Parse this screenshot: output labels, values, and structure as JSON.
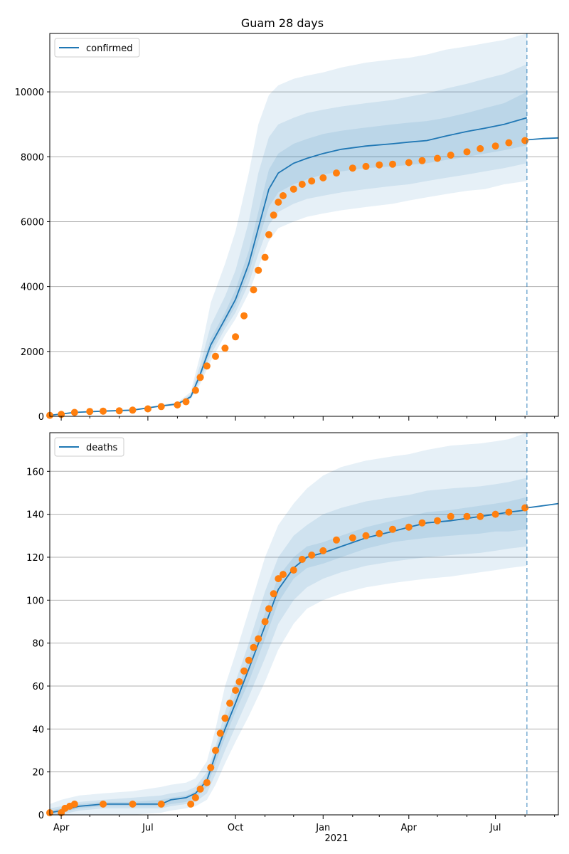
{
  "figure": {
    "title": "Guam 28 days",
    "year_label": "2021",
    "x_tick_labels": [
      "Apr",
      "Jul",
      "Oct",
      "Jan",
      "Apr",
      "Jul"
    ]
  },
  "colors": {
    "model_line": "#1f77b4",
    "observed": "#ff7f0e",
    "band": "#1f77b4",
    "grid": "#b0b0b0",
    "vline": "#1f77b4"
  },
  "chart_data": [
    {
      "type": "line",
      "name": "confirmed-panel",
      "legend": "confirmed",
      "legend_position": "top-left",
      "xlim": [
        "2020-03-20",
        "2021-09-05"
      ],
      "ylim": [
        0,
        11800
      ],
      "yticks": [
        0,
        2000,
        4000,
        6000,
        8000,
        10000
      ],
      "grid": "horizontal",
      "forecast_start": "2021-08-03",
      "series": [
        {
          "name": "confirmed",
          "x": [
            "2020-03-20",
            "2020-04-15",
            "2020-05-15",
            "2020-06-15",
            "2020-07-15",
            "2020-08-01",
            "2020-08-15",
            "2020-08-25",
            "2020-09-05",
            "2020-09-20",
            "2020-10-01",
            "2020-10-15",
            "2020-10-25",
            "2020-11-05",
            "2020-11-15",
            "2020-12-01",
            "2020-12-15",
            "2021-01-01",
            "2021-01-20",
            "2021-02-15",
            "2021-03-15",
            "2021-04-01",
            "2021-04-20",
            "2021-05-10",
            "2021-06-01",
            "2021-06-20",
            "2021-07-10",
            "2021-08-03"
          ],
          "y": [
            30,
            120,
            160,
            190,
            320,
            380,
            600,
            1300,
            2200,
            3000,
            3600,
            4700,
            5800,
            7000,
            7500,
            7800,
            7950,
            8100,
            8230,
            8330,
            8400,
            8450,
            8500,
            8640,
            8780,
            8880,
            9000,
            9200
          ]
        },
        {
          "name": "confirmed-forecast",
          "x": [
            "2021-08-03",
            "2021-08-20",
            "2021-09-05"
          ],
          "y": [
            8520,
            8560,
            8580
          ]
        }
      ],
      "bands": [
        {
          "x": [
            "2020-03-20",
            "2020-04-15",
            "2020-05-15",
            "2020-06-15",
            "2020-07-15",
            "2020-08-01",
            "2020-08-15",
            "2020-08-25",
            "2020-09-05",
            "2020-09-20",
            "2020-10-01",
            "2020-10-15",
            "2020-10-25",
            "2020-11-05",
            "2020-11-15",
            "2020-12-01",
            "2020-12-15",
            "2021-01-01",
            "2021-01-20",
            "2021-02-15",
            "2021-03-15",
            "2021-04-01",
            "2021-04-20",
            "2021-05-10",
            "2021-06-01",
            "2021-06-20",
            "2021-07-10",
            "2021-08-03"
          ],
          "lower": [
            30,
            120,
            150,
            180,
            290,
            340,
            520,
            1000,
            1700,
            2500,
            3000,
            3800,
            4600,
            5400,
            5800,
            6000,
            6150,
            6250,
            6350,
            6450,
            6550,
            6650,
            6750,
            6850,
            6950,
            7000,
            7150,
            7250
          ],
          "upper": [
            30,
            120,
            170,
            200,
            360,
            430,
            750,
            1900,
            3500,
            4700,
            5700,
            7500,
            9000,
            9900,
            10200,
            10400,
            10500,
            10600,
            10750,
            10900,
            11000,
            11050,
            11150,
            11300,
            11400,
            11500,
            11600,
            11800
          ]
        },
        {
          "x": [
            "2020-03-20",
            "2020-04-15",
            "2020-05-15",
            "2020-06-15",
            "2020-07-15",
            "2020-08-01",
            "2020-08-15",
            "2020-08-25",
            "2020-09-05",
            "2020-09-20",
            "2020-10-01",
            "2020-10-15",
            "2020-10-25",
            "2020-11-05",
            "2020-11-15",
            "2020-12-01",
            "2020-12-15",
            "2021-01-01",
            "2021-01-20",
            "2021-02-15",
            "2021-03-15",
            "2021-04-01",
            "2021-04-20",
            "2021-05-10",
            "2021-06-01",
            "2021-06-20",
            "2021-07-10",
            "2021-08-03"
          ],
          "lower": [
            30,
            120,
            155,
            185,
            300,
            355,
            560,
            1100,
            1900,
            2700,
            3200,
            4100,
            5000,
            5900,
            6300,
            6550,
            6700,
            6800,
            6900,
            7000,
            7100,
            7150,
            7250,
            7350,
            7450,
            7550,
            7650,
            7800
          ],
          "upper": [
            30,
            120,
            165,
            195,
            340,
            400,
            680,
            1600,
            2800,
            3700,
            4500,
            6000,
            7500,
            8600,
            9000,
            9200,
            9350,
            9450,
            9550,
            9650,
            9750,
            9850,
            9950,
            10100,
            10250,
            10400,
            10550,
            10850
          ]
        },
        {
          "x": [
            "2020-03-20",
            "2020-04-15",
            "2020-05-15",
            "2020-06-15",
            "2020-07-15",
            "2020-08-01",
            "2020-08-15",
            "2020-08-25",
            "2020-09-05",
            "2020-09-20",
            "2020-10-01",
            "2020-10-15",
            "2020-10-25",
            "2020-11-05",
            "2020-11-15",
            "2020-12-01",
            "2020-12-15",
            "2021-01-01",
            "2021-01-20",
            "2021-02-15",
            "2021-03-15",
            "2021-04-01",
            "2021-04-20",
            "2021-05-10",
            "2021-06-01",
            "2021-06-20",
            "2021-07-10",
            "2021-08-03"
          ],
          "lower": [
            30,
            120,
            158,
            188,
            310,
            368,
            580,
            1200,
            2050,
            2850,
            3400,
            4400,
            5400,
            6450,
            6900,
            7150,
            7300,
            7450,
            7550,
            7650,
            7700,
            7750,
            7800,
            7900,
            8000,
            8100,
            8200,
            8350
          ],
          "upper": [
            30,
            120,
            162,
            192,
            330,
            392,
            620,
            1400,
            2400,
            3200,
            3900,
            5100,
            6300,
            7600,
            8100,
            8400,
            8550,
            8700,
            8800,
            8900,
            9000,
            9050,
            9100,
            9200,
            9350,
            9500,
            9650,
            10000
          ]
        }
      ],
      "observed": {
        "x": [
          "2020-03-20",
          "2020-04-01",
          "2020-04-15",
          "2020-05-01",
          "2020-05-15",
          "2020-06-01",
          "2020-06-15",
          "2020-07-01",
          "2020-07-15",
          "2020-08-01",
          "2020-08-10",
          "2020-08-20",
          "2020-08-25",
          "2020-09-01",
          "2020-09-10",
          "2020-09-20",
          "2020-10-01",
          "2020-10-10",
          "2020-10-20",
          "2020-10-25",
          "2020-11-01",
          "2020-11-05",
          "2020-11-10",
          "2020-11-15",
          "2020-11-20",
          "2020-12-01",
          "2020-12-10",
          "2020-12-20",
          "2021-01-01",
          "2021-01-15",
          "2021-02-01",
          "2021-02-15",
          "2021-03-01",
          "2021-03-15",
          "2021-04-01",
          "2021-04-15",
          "2021-05-01",
          "2021-05-15",
          "2021-06-01",
          "2021-06-15",
          "2021-07-01",
          "2021-07-15",
          "2021-08-01"
        ],
        "y": [
          30,
          60,
          120,
          150,
          160,
          170,
          190,
          230,
          300,
          350,
          450,
          800,
          1200,
          1550,
          1850,
          2100,
          2450,
          3100,
          3900,
          4500,
          4900,
          5600,
          6200,
          6600,
          6800,
          7000,
          7150,
          7250,
          7350,
          7500,
          7650,
          7700,
          7750,
          7770,
          7820,
          7880,
          7950,
          8050,
          8150,
          8250,
          8330,
          8430,
          8500
        ]
      }
    },
    {
      "type": "line",
      "name": "deaths-panel",
      "legend": "deaths",
      "legend_position": "top-left",
      "xlim": [
        "2020-03-20",
        "2021-09-05"
      ],
      "ylim": [
        0,
        178
      ],
      "yticks": [
        0,
        20,
        40,
        60,
        80,
        100,
        120,
        140,
        160
      ],
      "grid": "horizontal",
      "forecast_start": "2021-08-03",
      "series": [
        {
          "name": "deaths",
          "x": [
            "2020-03-20",
            "2020-04-01",
            "2020-04-10",
            "2020-04-20",
            "2020-05-15",
            "2020-06-15",
            "2020-07-15",
            "2020-07-25",
            "2020-08-10",
            "2020-08-20",
            "2020-09-01",
            "2020-09-10",
            "2020-09-20",
            "2020-10-01",
            "2020-10-15",
            "2020-11-01",
            "2020-11-15",
            "2020-12-01",
            "2020-12-15",
            "2021-01-01",
            "2021-01-20",
            "2021-02-15",
            "2021-03-15",
            "2021-04-01",
            "2021-04-20",
            "2021-05-15",
            "2021-06-15",
            "2021-07-01",
            "2021-07-15",
            "2021-08-03"
          ],
          "y": [
            1,
            2,
            3,
            4,
            5,
            5,
            5,
            7,
            8,
            10,
            16,
            28,
            40,
            52,
            68,
            88,
            105,
            115,
            120,
            122,
            125,
            129,
            132,
            134,
            136,
            137,
            139,
            140,
            141,
            142
          ]
        },
        {
          "name": "deaths-forecast",
          "x": [
            "2021-08-03",
            "2021-08-20",
            "2021-09-05"
          ],
          "y": [
            143,
            144,
            145
          ]
        }
      ],
      "bands": [
        {
          "x": [
            "2020-03-20",
            "2020-04-01",
            "2020-04-10",
            "2020-04-20",
            "2020-05-15",
            "2020-06-15",
            "2020-07-15",
            "2020-07-25",
            "2020-08-10",
            "2020-08-20",
            "2020-09-01",
            "2020-09-10",
            "2020-09-20",
            "2020-10-01",
            "2020-10-15",
            "2020-11-01",
            "2020-11-15",
            "2020-12-01",
            "2020-12-15",
            "2021-01-01",
            "2021-01-20",
            "2021-02-15",
            "2021-03-15",
            "2021-04-01",
            "2021-04-20",
            "2021-05-15",
            "2021-06-15",
            "2021-07-01",
            "2021-07-15",
            "2021-08-03"
          ],
          "lower": [
            0,
            0,
            0,
            0,
            0,
            0,
            1,
            2,
            3,
            4,
            7,
            14,
            24,
            34,
            46,
            62,
            77,
            89,
            96,
            100,
            103,
            106,
            108,
            109,
            110,
            111,
            113,
            114,
            115,
            116
          ],
          "upper": [
            5,
            7,
            8,
            9,
            10,
            11,
            13,
            14,
            15,
            17,
            25,
            40,
            60,
            75,
            95,
            120,
            135,
            145,
            152,
            158,
            162,
            165,
            167,
            168,
            170,
            172,
            173,
            174,
            175,
            178
          ]
        },
        {
          "x": [
            "2020-03-20",
            "2020-04-01",
            "2020-04-10",
            "2020-04-20",
            "2020-05-15",
            "2020-06-15",
            "2020-07-15",
            "2020-07-25",
            "2020-08-10",
            "2020-08-20",
            "2020-09-01",
            "2020-09-10",
            "2020-09-20",
            "2020-10-01",
            "2020-10-15",
            "2020-11-01",
            "2020-11-15",
            "2020-12-01",
            "2020-12-15",
            "2021-01-01",
            "2021-01-20",
            "2021-02-15",
            "2021-03-15",
            "2021-04-01",
            "2021-04-20",
            "2021-05-15",
            "2021-06-15",
            "2021-07-01",
            "2021-07-15",
            "2021-08-03"
          ],
          "lower": [
            0,
            0,
            1,
            2,
            3,
            3,
            3,
            4,
            5,
            6,
            10,
            19,
            30,
            41,
            55,
            73,
            89,
            100,
            106,
            110,
            113,
            116,
            118,
            119,
            120,
            121,
            122,
            123,
            124,
            125
          ],
          "upper": [
            3,
            4,
            5,
            6,
            7,
            8,
            9,
            10,
            11,
            13,
            20,
            32,
            48,
            62,
            80,
            104,
            120,
            130,
            135,
            140,
            143,
            146,
            148,
            149,
            151,
            152,
            153,
            154,
            155,
            157
          ]
        },
        {
          "x": [
            "2020-03-20",
            "2020-04-01",
            "2020-04-10",
            "2020-04-20",
            "2020-05-15",
            "2020-06-15",
            "2020-07-15",
            "2020-07-25",
            "2020-08-10",
            "2020-08-20",
            "2020-09-01",
            "2020-09-10",
            "2020-09-20",
            "2020-10-01",
            "2020-10-15",
            "2020-11-01",
            "2020-11-15",
            "2020-12-01",
            "2020-12-15",
            "2021-01-01",
            "2021-01-20",
            "2021-02-15",
            "2021-03-15",
            "2021-04-01",
            "2021-04-20",
            "2021-05-15",
            "2021-06-15",
            "2021-07-01",
            "2021-07-15",
            "2021-08-03"
          ],
          "lower": [
            0,
            1,
            2,
            3,
            4,
            4,
            4,
            5,
            6,
            8,
            13,
            24,
            36,
            48,
            62,
            82,
            99,
            110,
            115,
            117,
            120,
            124,
            127,
            128,
            129,
            130,
            131,
            132,
            132,
            133
          ],
          "upper": [
            2,
            3,
            4,
            5,
            6,
            6,
            7,
            8,
            9,
            11,
            18,
            30,
            43,
            56,
            73,
            94,
            111,
            120,
            125,
            127,
            130,
            134,
            137,
            139,
            141,
            142,
            144,
            145,
            146,
            148
          ]
        }
      ],
      "observed": {
        "x": [
          "2020-03-20",
          "2020-04-01",
          "2020-04-05",
          "2020-04-10",
          "2020-04-15",
          "2020-05-15",
          "2020-06-15",
          "2020-07-15",
          "2020-08-15",
          "2020-08-20",
          "2020-08-25",
          "2020-09-01",
          "2020-09-05",
          "2020-09-10",
          "2020-09-15",
          "2020-09-20",
          "2020-09-25",
          "2020-10-01",
          "2020-10-05",
          "2020-10-10",
          "2020-10-15",
          "2020-10-20",
          "2020-10-25",
          "2020-11-01",
          "2020-11-05",
          "2020-11-10",
          "2020-11-15",
          "2020-11-20",
          "2020-12-01",
          "2020-12-10",
          "2020-12-20",
          "2021-01-01",
          "2021-01-15",
          "2021-02-01",
          "2021-02-15",
          "2021-03-01",
          "2021-03-15",
          "2021-04-01",
          "2021-04-15",
          "2021-05-01",
          "2021-05-15",
          "2021-06-01",
          "2021-06-15",
          "2021-07-01",
          "2021-07-15",
          "2021-08-01"
        ],
        "y": [
          1,
          1,
          3,
          4,
          5,
          5,
          5,
          5,
          5,
          8,
          12,
          15,
          22,
          30,
          38,
          45,
          52,
          58,
          62,
          67,
          72,
          78,
          82,
          90,
          96,
          103,
          110,
          112,
          114,
          119,
          121,
          123,
          128,
          129,
          130,
          131,
          133,
          134,
          136,
          137,
          139,
          139,
          139,
          140,
          141,
          143
        ]
      }
    }
  ]
}
